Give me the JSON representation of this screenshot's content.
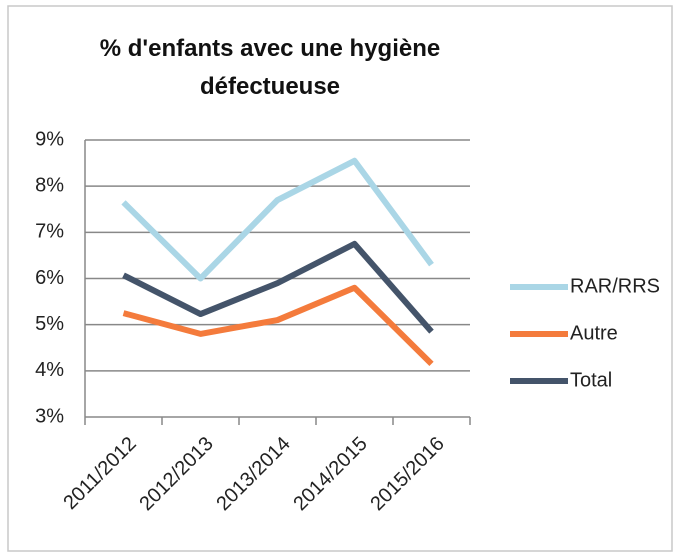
{
  "chart_data": {
    "type": "line",
    "title": "% d'enfants avec  une hygiène défectueuse",
    "categories": [
      "2011/2012",
      "2012/2013",
      "2013/2014",
      "2014/2015",
      "2015/2016"
    ],
    "series": [
      {
        "name": "RAR/RRS",
        "color": "#aad6e6",
        "values": [
          7.65,
          6.0,
          7.7,
          8.55,
          6.3
        ]
      },
      {
        "name": "Autre",
        "color": "#f47b3c",
        "values": [
          5.25,
          4.8,
          5.1,
          5.8,
          4.15
        ]
      },
      {
        "name": "Total",
        "color": "#44546a",
        "values": [
          6.07,
          5.23,
          5.9,
          6.75,
          4.85
        ]
      }
    ],
    "ylim": [
      3,
      9
    ],
    "yticks": [
      {
        "value": 3,
        "label": "3%"
      },
      {
        "value": 4,
        "label": "4%"
      },
      {
        "value": 5,
        "label": "5%"
      },
      {
        "value": 6,
        "label": "6%"
      },
      {
        "value": 7,
        "label": "7%"
      },
      {
        "value": 8,
        "label": "8%"
      },
      {
        "value": 9,
        "label": "9%"
      }
    ],
    "grid": true,
    "legend": "right"
  }
}
